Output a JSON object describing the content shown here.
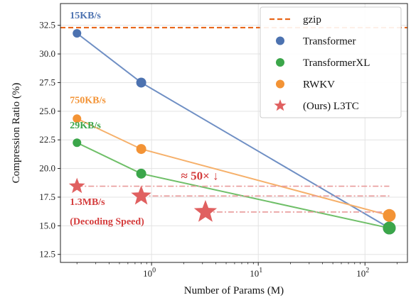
{
  "chart_data": {
    "type": "line",
    "title": "",
    "xlabel": "Number of Params (M)",
    "ylabel": "Compression Ratio (%)",
    "xscale": "log",
    "xlim": [
      0.14,
      250
    ],
    "ylim": [
      11.8,
      34.4
    ],
    "xticks": [
      {
        "value": 1,
        "label": "10",
        "exp": "0"
      },
      {
        "value": 10,
        "label": "10",
        "exp": "1"
      },
      {
        "value": 100,
        "label": "10",
        "exp": "2"
      }
    ],
    "yticks": [
      12.5,
      15.0,
      17.5,
      20.0,
      22.5,
      25.0,
      27.5,
      30.0,
      32.5
    ],
    "ytick_labels": [
      "12.5",
      "15.0",
      "17.5",
      "20.0",
      "22.5",
      "25.0",
      "27.5",
      "30.0",
      "32.5"
    ],
    "grid": true,
    "legend_position": "top-right",
    "hline": {
      "name": "gzip",
      "y": 32.3,
      "color": "#e8661a"
    },
    "series": [
      {
        "name": "Transformer",
        "color": "#4c72b0",
        "line_color": "#6f8fc4",
        "points": [
          {
            "x": 0.2,
            "y": 31.8
          },
          {
            "x": 0.8,
            "y": 27.5
          },
          {
            "x": 169,
            "y": 14.8
          }
        ],
        "sizes": [
          6,
          7,
          9
        ]
      },
      {
        "name": "TransformerXL",
        "color": "#3ba64a",
        "line_color": "#6fbf68",
        "points": [
          {
            "x": 0.2,
            "y": 22.25
          },
          {
            "x": 0.8,
            "y": 19.55
          },
          {
            "x": 169,
            "y": 14.8
          }
        ],
        "sizes": [
          6,
          7,
          9
        ]
      },
      {
        "name": "RWKV",
        "color": "#f39335",
        "line_color": "#f6b06a",
        "points": [
          {
            "x": 0.2,
            "y": 24.35
          },
          {
            "x": 0.8,
            "y": 21.7
          },
          {
            "x": 169,
            "y": 15.9
          }
        ],
        "sizes": [
          6,
          7,
          9
        ]
      },
      {
        "name": "(Ours) L3TC",
        "color": "#e06060",
        "marker": "star",
        "points": [
          {
            "x": 0.2,
            "y": 18.45
          },
          {
            "x": 0.8,
            "y": 17.6
          },
          {
            "x": 3.2,
            "y": 16.2
          }
        ],
        "sizes": [
          12,
          15,
          17
        ]
      }
    ],
    "annotations": [
      {
        "text": "15KB/s",
        "x": 0.2,
        "y": 33.1,
        "color": "#4c72b0",
        "size": "normal"
      },
      {
        "text": "750KB/s",
        "x": 0.2,
        "y": 25.7,
        "color": "#f39335",
        "size": "normal"
      },
      {
        "text": "29KB/s",
        "x": 0.2,
        "y": 23.5,
        "color": "#3ba64a",
        "size": "normal"
      },
      {
        "text": "1.3MB/s",
        "x": 0.2,
        "y": 16.8,
        "color": "#d43c3c",
        "size": "normal"
      },
      {
        "text": "(Decoding Speed)",
        "x": 0.2,
        "y": 15.1,
        "color": "#d43c3c",
        "size": "normal"
      },
      {
        "text": "≈ 50× ↓",
        "x": 2.2,
        "y": 19.0,
        "color": "#d43c3c",
        "size": "big"
      }
    ],
    "dashdot_links": [
      {
        "from_x": 0.2,
        "to_x": 169,
        "y": 18.45
      },
      {
        "from_x": 0.8,
        "to_x": 169,
        "y": 17.6
      },
      {
        "from_x": 3.2,
        "to_x": 169,
        "y": 16.2
      }
    ]
  }
}
